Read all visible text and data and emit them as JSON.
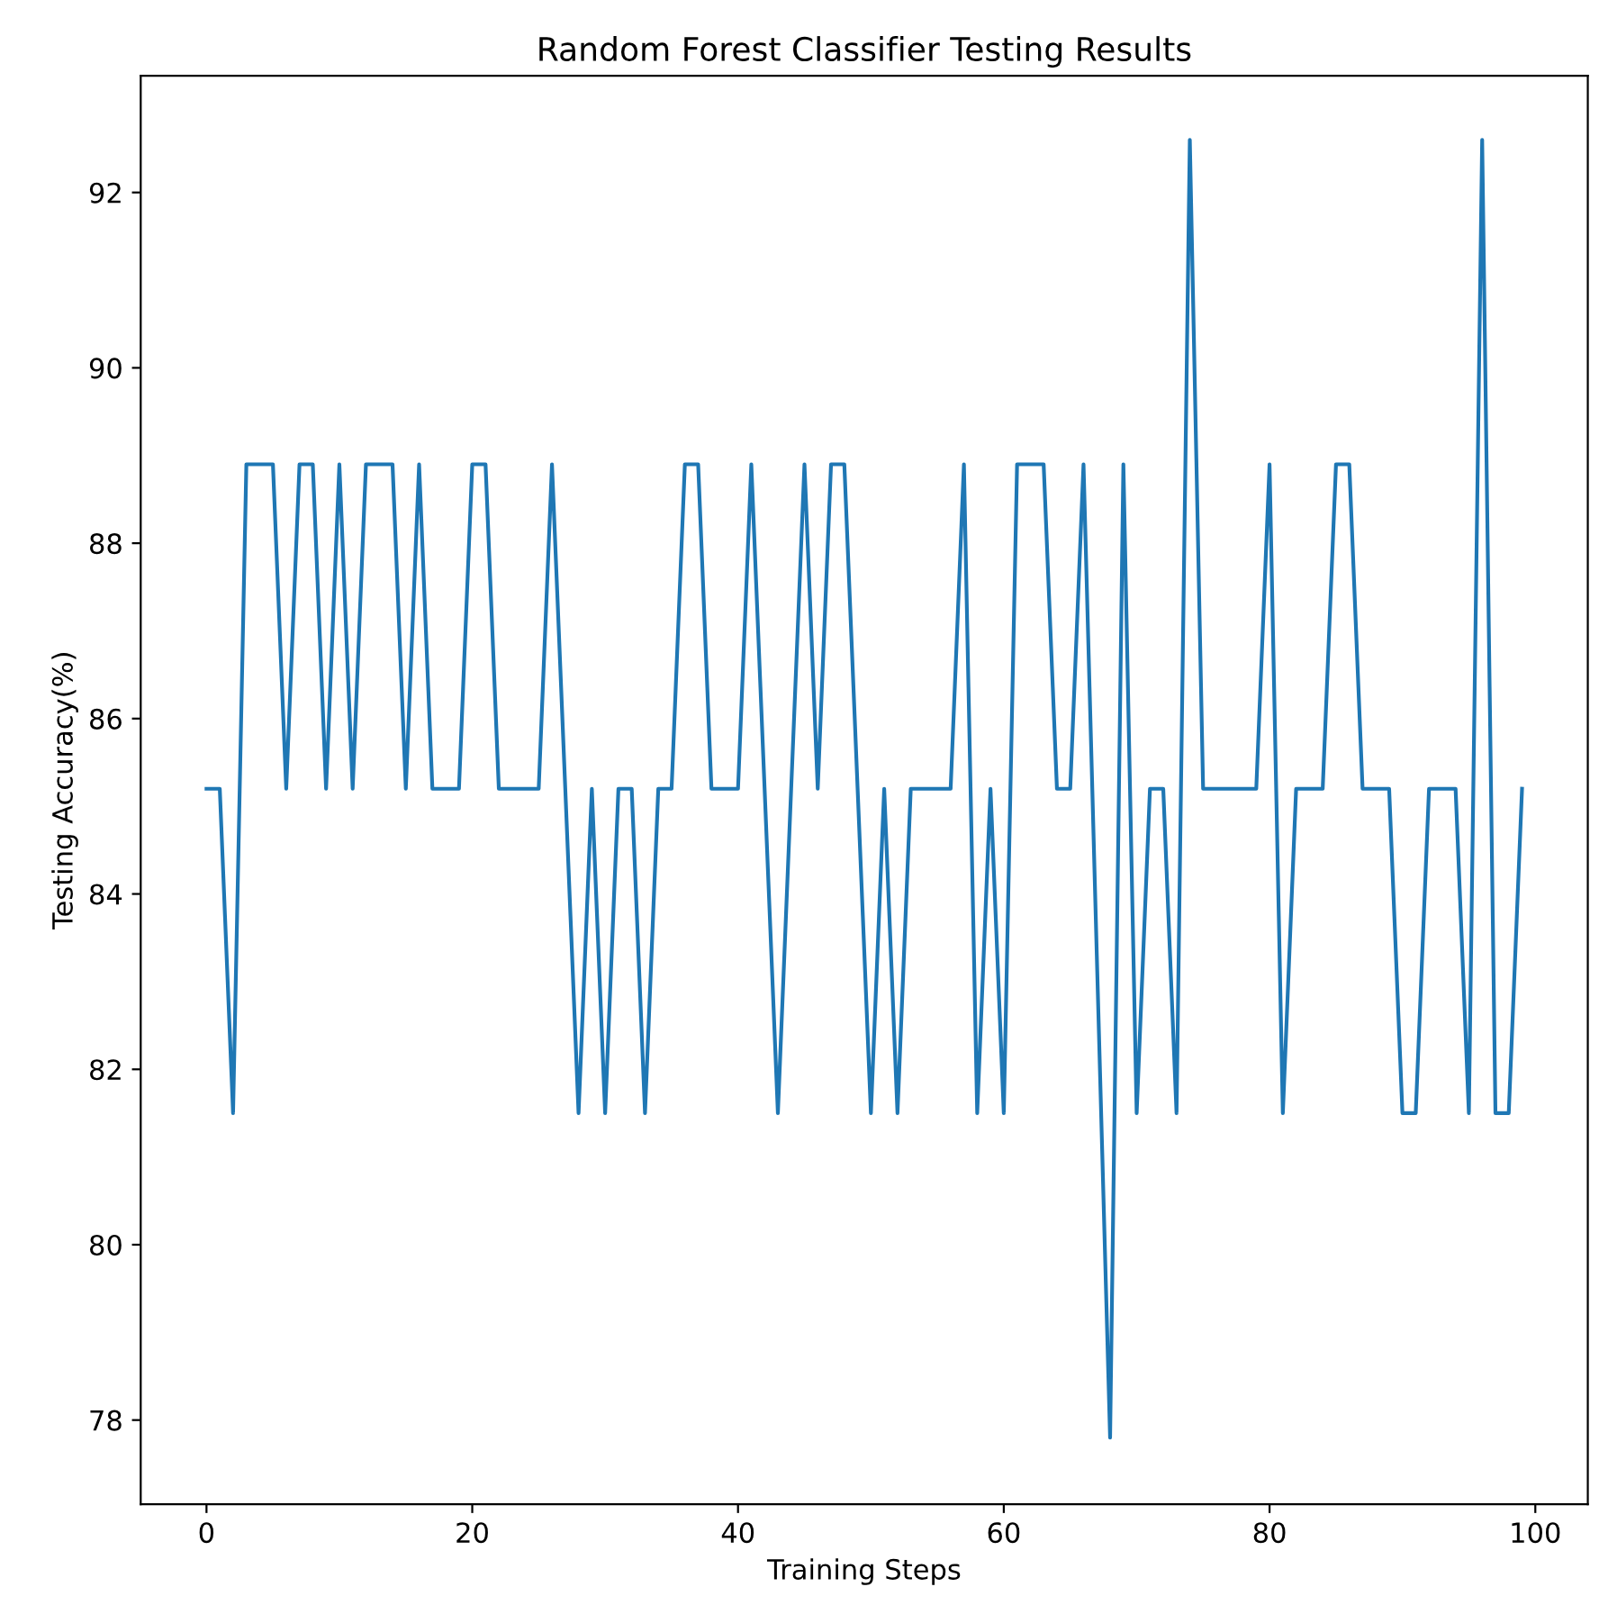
{
  "chart_data": {
    "type": "line",
    "title": "Random Forest Classifier Testing Results",
    "xlabel": "Training Steps",
    "ylabel": "Testing Accuracy(%)",
    "x": [
      0,
      1,
      2,
      3,
      4,
      5,
      6,
      7,
      8,
      9,
      10,
      11,
      12,
      13,
      14,
      15,
      16,
      17,
      18,
      19,
      20,
      21,
      22,
      23,
      24,
      25,
      26,
      27,
      28,
      29,
      30,
      31,
      32,
      33,
      34,
      35,
      36,
      37,
      38,
      39,
      40,
      41,
      42,
      43,
      44,
      45,
      46,
      47,
      48,
      49,
      50,
      51,
      52,
      53,
      54,
      55,
      56,
      57,
      58,
      59,
      60,
      61,
      62,
      63,
      64,
      65,
      66,
      67,
      68,
      69,
      70,
      71,
      72,
      73,
      74,
      75,
      76,
      77,
      78,
      79,
      80,
      81,
      82,
      83,
      84,
      85,
      86,
      87,
      88,
      89,
      90,
      91,
      92,
      93,
      94,
      95,
      96,
      97,
      98,
      99
    ],
    "series": [
      {
        "color": "#1f77b4",
        "values": [
          85.2,
          85.2,
          81.5,
          88.9,
          88.9,
          88.9,
          85.2,
          88.9,
          88.9,
          85.2,
          88.9,
          85.2,
          88.9,
          88.9,
          88.9,
          85.2,
          88.9,
          85.2,
          85.2,
          85.2,
          88.9,
          88.9,
          85.2,
          85.2,
          85.2,
          85.2,
          88.9,
          85.2,
          81.5,
          85.2,
          81.5,
          85.2,
          85.2,
          81.5,
          85.2,
          85.2,
          88.9,
          88.9,
          85.2,
          85.2,
          85.2,
          88.9,
          85.2,
          81.5,
          85.2,
          88.9,
          85.2,
          88.9,
          88.9,
          85.2,
          81.5,
          85.2,
          81.5,
          85.2,
          85.2,
          85.2,
          85.2,
          88.9,
          81.5,
          85.2,
          81.5,
          88.9,
          88.9,
          88.9,
          85.2,
          85.2,
          88.9,
          83.3,
          77.8,
          88.9,
          81.5,
          85.2,
          85.2,
          81.5,
          92.6,
          85.2,
          85.2,
          85.2,
          85.2,
          85.2,
          88.9,
          81.5,
          85.2,
          85.2,
          85.2,
          88.9,
          88.9,
          85.2,
          85.2,
          85.2,
          81.5,
          81.5,
          85.2,
          85.2,
          85.2,
          81.5,
          92.6,
          81.5,
          81.5,
          85.2
        ]
      }
    ],
    "xlim": [
      -4.95,
      103.95
    ],
    "ylim": [
      77.04,
      93.33
    ],
    "xticks": [
      0,
      20,
      40,
      60,
      80,
      100
    ],
    "yticks": [
      78,
      80,
      82,
      84,
      86,
      88,
      90,
      92
    ],
    "grid": false,
    "legend": false,
    "marker": "none",
    "line_style": "solid"
  }
}
